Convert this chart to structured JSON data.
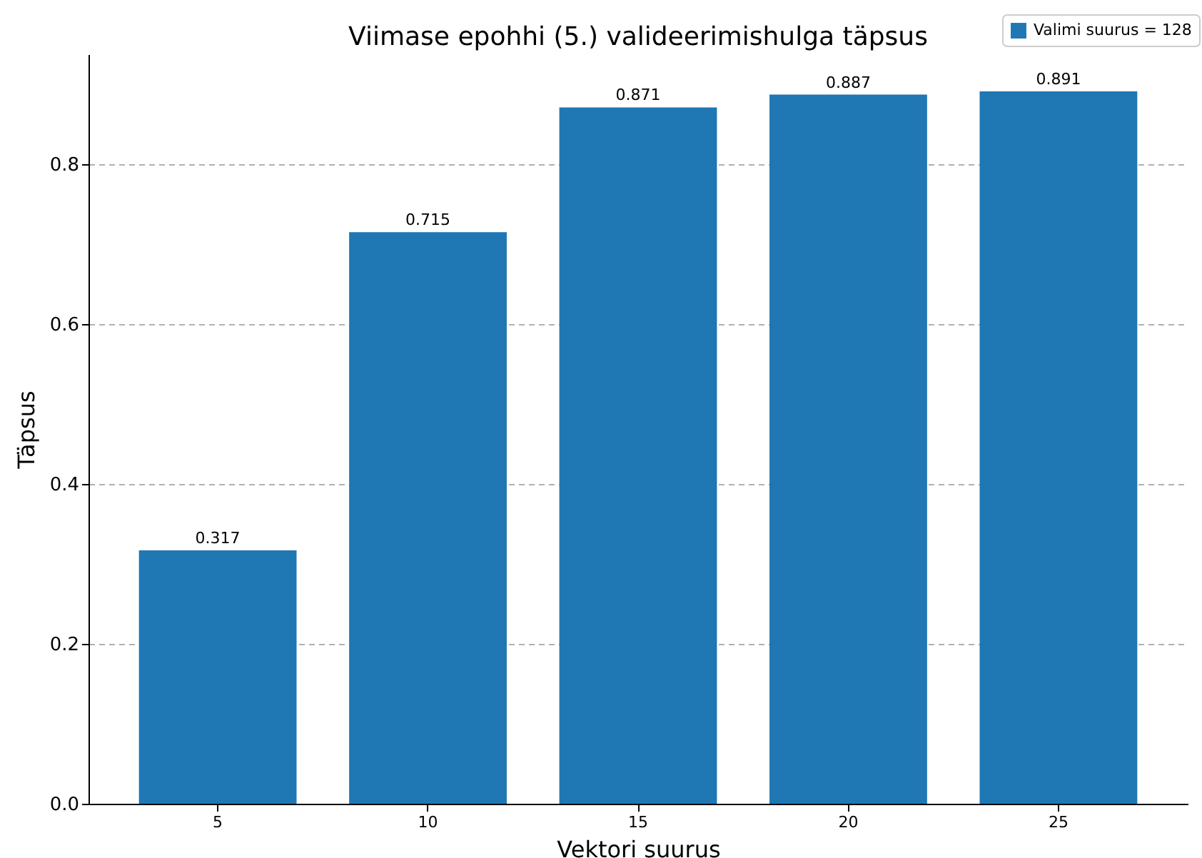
{
  "chart_data": {
    "type": "bar",
    "title": "Viimase epohhi (5.) valideerimishulga täpsus",
    "xlabel": "Vektori suurus",
    "ylabel": "Täpsus",
    "categories": [
      "5",
      "10",
      "15",
      "20",
      "25"
    ],
    "series": [
      {
        "name": "Valimi suurus = 128",
        "color": "#1f77b4",
        "values": [
          0.317,
          0.715,
          0.871,
          0.887,
          0.891
        ]
      }
    ],
    "ylim": [
      0,
      0.9375
    ],
    "yticks": [
      {
        "value": 0,
        "label": "0.0"
      },
      0.2,
      0.4,
      0.6,
      0.8
    ],
    "grid": "y",
    "legend": "top right",
    "data_labels": true
  }
}
